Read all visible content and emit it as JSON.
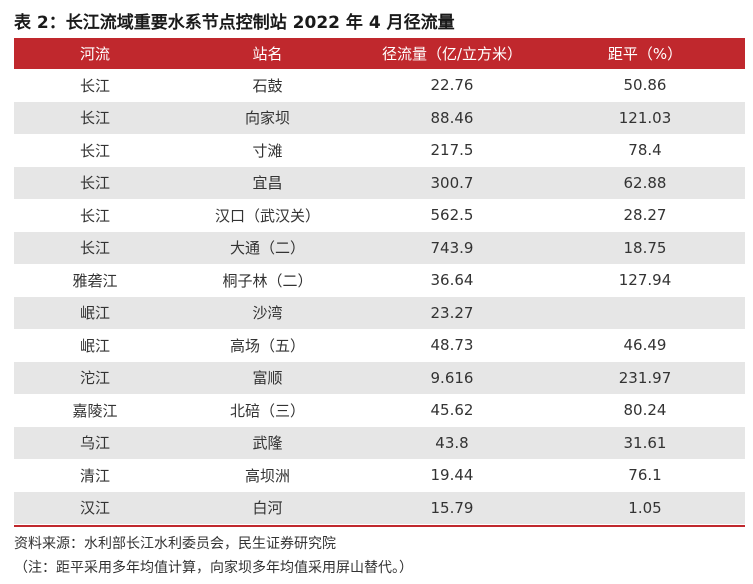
{
  "title": "表 2：长江流域重要水系节点控制站 2022 年 4 月径流量",
  "table": {
    "headers": [
      "河流",
      "站名",
      "径流量（亿/立方米）",
      "距平（%）"
    ],
    "rows": [
      [
        "长江",
        "石鼓",
        "22.76",
        "50.86"
      ],
      [
        "长江",
        "向家坝",
        "88.46",
        "121.03"
      ],
      [
        "长江",
        "寸滩",
        "217.5",
        "78.4"
      ],
      [
        "长江",
        "宜昌",
        "300.7",
        "62.88"
      ],
      [
        "长江",
        "汉口（武汉关）",
        "562.5",
        "28.27"
      ],
      [
        "长江",
        "大通（二）",
        "743.9",
        "18.75"
      ],
      [
        "雅砻江",
        "桐子林（二）",
        "36.64",
        "127.94"
      ],
      [
        "岷江",
        "沙湾",
        "23.27",
        ""
      ],
      [
        "岷江",
        "高场（五）",
        "48.73",
        "46.49"
      ],
      [
        "沱江",
        "富顺",
        "9.616",
        "231.97"
      ],
      [
        "嘉陵江",
        "北碚（三）",
        "45.62",
        "80.24"
      ],
      [
        "乌江",
        "武隆",
        "43.8",
        "31.61"
      ],
      [
        "清江",
        "高坝洲",
        "19.44",
        "76.1"
      ],
      [
        "汉江",
        "白河",
        "15.79",
        "1.05"
      ]
    ]
  },
  "source": "资料来源：水利部长江水利委员会，民生证券研究院",
  "note": "（注：距平采用多年均值计算，向家坝多年均值采用屏山替代。）",
  "colors": {
    "header_bg": "#c0282d",
    "header_text": "#ffffff",
    "stripe_bg": "#e6e6e6",
    "rule": "#c0282d"
  }
}
